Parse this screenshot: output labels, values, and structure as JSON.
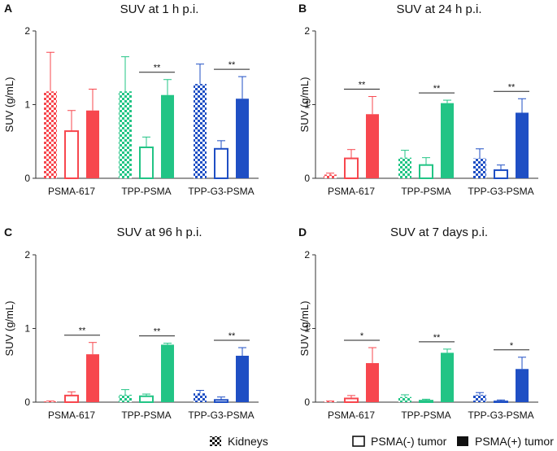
{
  "chart_data": [
    {
      "type": "bar",
      "panel_label": "A",
      "title": "SUV at 1 h p.i.",
      "ylabel": "SUV (g/mL)",
      "xlabel": "",
      "ylim": [
        0,
        2
      ],
      "yticks": [
        "0",
        "1",
        "2"
      ],
      "categories": [
        "PSMA-617",
        "TPP-PSMA",
        "TPP-G3-PSMA"
      ],
      "series": [
        {
          "name": "Kidneys",
          "values": [
            1.18,
            1.18,
            1.28
          ],
          "errors": [
            0.53,
            0.47,
            0.27
          ]
        },
        {
          "name": "PSMA(-) tumor",
          "values": [
            0.64,
            0.42,
            0.4
          ],
          "errors": [
            0.28,
            0.14,
            0.11
          ]
        },
        {
          "name": "PSMA(+) tumor",
          "values": [
            0.92,
            1.13,
            1.08
          ],
          "errors": [
            0.29,
            0.21,
            0.3
          ]
        }
      ],
      "significance": [
        {
          "category": 1,
          "text": "**"
        },
        {
          "category": 2,
          "text": "**"
        }
      ]
    },
    {
      "type": "bar",
      "panel_label": "B",
      "title": "SUV at 24 h p.i.",
      "ylabel": "SUV (g/mL)",
      "xlabel": "",
      "ylim": [
        0,
        2
      ],
      "yticks": [
        "0",
        "1",
        "2"
      ],
      "categories": [
        "PSMA-617",
        "TPP-PSMA",
        "TPP-G3-PSMA"
      ],
      "series": [
        {
          "name": "Kidneys",
          "values": [
            0.05,
            0.28,
            0.27
          ],
          "errors": [
            0.02,
            0.1,
            0.13
          ]
        },
        {
          "name": "PSMA(-) tumor",
          "values": [
            0.27,
            0.18,
            0.11
          ],
          "errors": [
            0.12,
            0.1,
            0.07
          ]
        },
        {
          "name": "PSMA(+) tumor",
          "values": [
            0.87,
            1.02,
            0.89
          ],
          "errors": [
            0.24,
            0.04,
            0.19
          ]
        }
      ],
      "significance": [
        {
          "category": 0,
          "text": "**"
        },
        {
          "category": 1,
          "text": "**"
        },
        {
          "category": 2,
          "text": "**"
        }
      ]
    },
    {
      "type": "bar",
      "panel_label": "C",
      "title": "SUV at 96 h p.i.",
      "ylabel": "SUV (g/mL)",
      "xlabel": "",
      "ylim": [
        0,
        2
      ],
      "yticks": [
        "0",
        "1",
        "2"
      ],
      "categories": [
        "PSMA-617",
        "TPP-PSMA",
        "TPP-G3-PSMA"
      ],
      "series": [
        {
          "name": "Kidneys",
          "values": [
            0.01,
            0.1,
            0.12
          ],
          "errors": [
            0.005,
            0.07,
            0.04
          ]
        },
        {
          "name": "PSMA(-) tumor",
          "values": [
            0.09,
            0.08,
            0.03
          ],
          "errors": [
            0.05,
            0.03,
            0.04
          ]
        },
        {
          "name": "PSMA(+) tumor",
          "values": [
            0.65,
            0.78,
            0.63
          ],
          "errors": [
            0.16,
            0.02,
            0.11
          ]
        }
      ],
      "significance": [
        {
          "category": 0,
          "text": "**"
        },
        {
          "category": 1,
          "text": "**"
        },
        {
          "category": 2,
          "text": "**"
        }
      ]
    },
    {
      "type": "bar",
      "panel_label": "D",
      "title": "SUV at 7 days p.i.",
      "ylabel": "SUV (g/mL)",
      "xlabel": "",
      "ylim": [
        0,
        2
      ],
      "yticks": [
        "0",
        "1",
        "2"
      ],
      "categories": [
        "PSMA-617",
        "TPP-PSMA",
        "TPP-G3-PSMA"
      ],
      "series": [
        {
          "name": "Kidneys",
          "values": [
            0.01,
            0.07,
            0.1
          ],
          "errors": [
            0.005,
            0.03,
            0.03
          ]
        },
        {
          "name": "PSMA(-) tumor",
          "values": [
            0.05,
            0.02,
            0.01
          ],
          "errors": [
            0.04,
            0.02,
            0.02
          ]
        },
        {
          "name": "PSMA(+) tumor",
          "values": [
            0.53,
            0.67,
            0.45
          ],
          "errors": [
            0.21,
            0.05,
            0.16
          ]
        }
      ],
      "significance": [
        {
          "category": 0,
          "text": "*"
        },
        {
          "category": 1,
          "text": "**"
        },
        {
          "category": 2,
          "text": "*"
        }
      ]
    }
  ],
  "legend": [
    {
      "label": "Kidneys",
      "style": "checker"
    },
    {
      "label": "PSMA(-) tumor",
      "style": "hollow"
    },
    {
      "label": "PSMA(+) tumor",
      "style": "solid"
    }
  ],
  "colors": {
    "PSMA-617": "#f7474e",
    "TPP-PSMA": "#22c485",
    "TPP-G3-PSMA": "#1f4fc4",
    "legend": "#111111",
    "axis": "#333333"
  }
}
